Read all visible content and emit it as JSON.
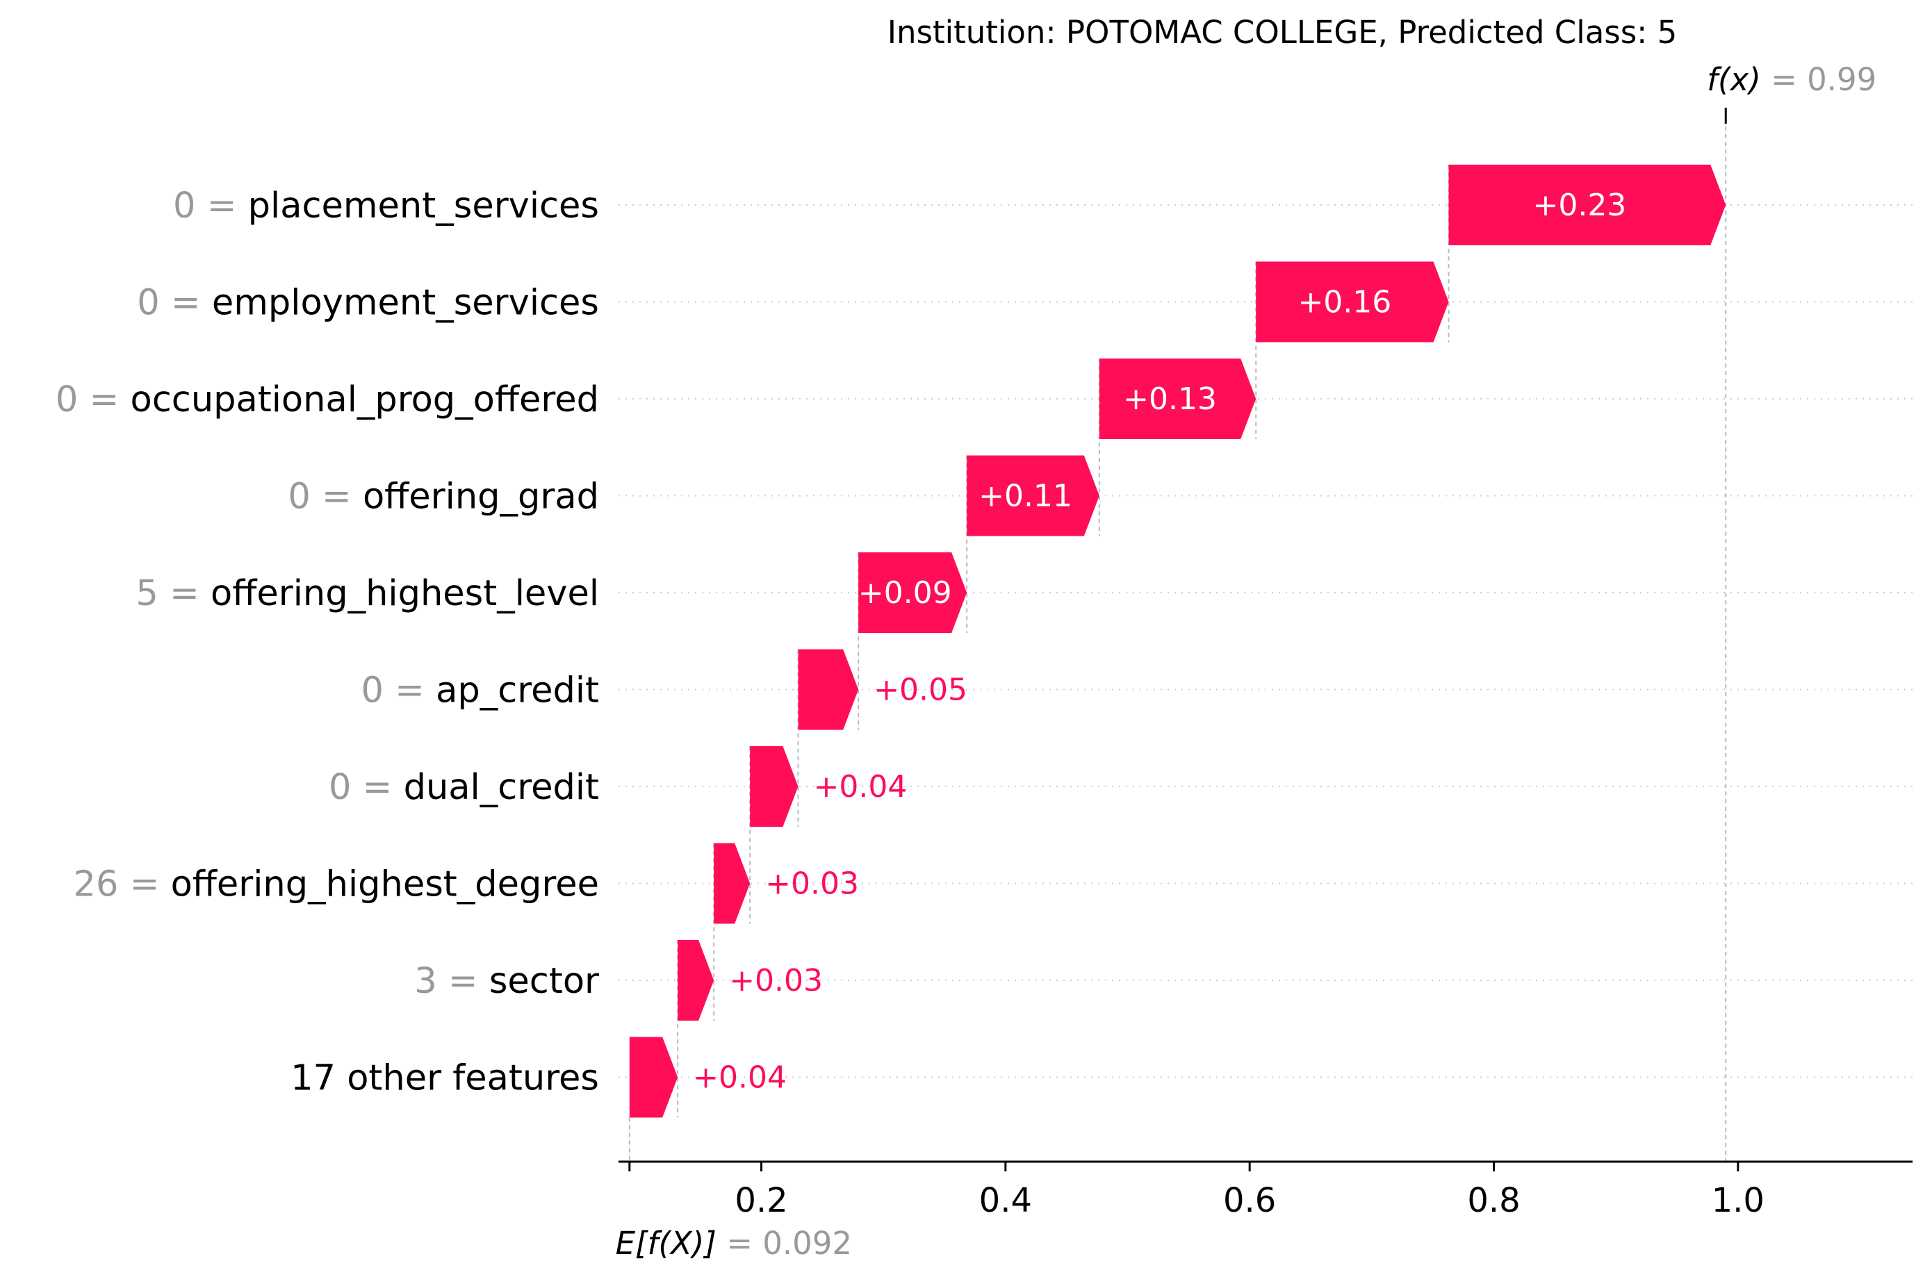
{
  "chart_data": {
    "type": "waterfall",
    "title": "Institution: POTOMAC COLLEGE, Predicted Class: 5",
    "base_value": 0.092,
    "base_label_prefix": "E[f(X)]",
    "base_label_value": "= 0.092",
    "output_value": 0.99,
    "output_label_prefix": "f(x)",
    "output_label_value": "= 0.99",
    "features": [
      {
        "value": "0",
        "name": "placement_services",
        "contribution": 0.23,
        "label": "+0.23"
      },
      {
        "value": "0",
        "name": "employment_services",
        "contribution": 0.16,
        "label": "+0.16"
      },
      {
        "value": "0",
        "name": "occupational_prog_offered",
        "contribution": 0.13,
        "label": "+0.13"
      },
      {
        "value": "0",
        "name": "offering_grad",
        "contribution": 0.11,
        "label": "+0.11"
      },
      {
        "value": "5",
        "name": "offering_highest_level",
        "contribution": 0.09,
        "label": "+0.09"
      },
      {
        "value": "0",
        "name": "ap_credit",
        "contribution": 0.05,
        "label": "+0.05"
      },
      {
        "value": "0",
        "name": "dual_credit",
        "contribution": 0.04,
        "label": "+0.04"
      },
      {
        "value": "26",
        "name": "offering_highest_degree",
        "contribution": 0.03,
        "label": "+0.03"
      },
      {
        "value": "3",
        "name": "sector",
        "contribution": 0.03,
        "label": "+0.03"
      },
      {
        "value": "",
        "name": "17 other features",
        "contribution": 0.04,
        "label": "+0.04"
      }
    ],
    "xticks": [
      0.2,
      0.4,
      0.6,
      0.8,
      1.0
    ],
    "xtick_labels": [
      "0.2",
      "0.4",
      "0.6",
      "0.8",
      "1.0"
    ],
    "xlim": [
      0.083,
      1.143
    ],
    "colors": {
      "positive": "#ff0d57",
      "label_on_bar": "#ffffff",
      "feature_value": "#999999",
      "text": "#000000",
      "gridline": "#cccccc"
    }
  }
}
